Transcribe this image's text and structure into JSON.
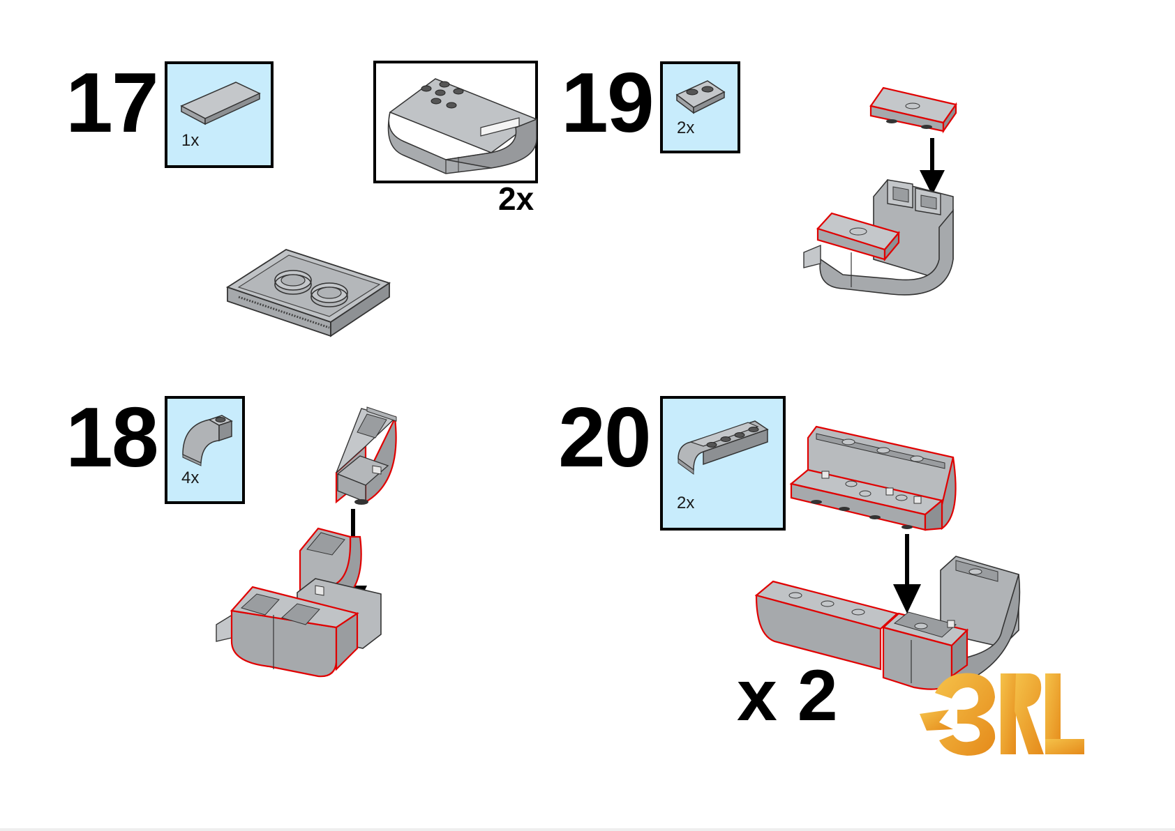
{
  "steps": [
    {
      "number": "17",
      "parts": [
        {
          "qty": "1x",
          "icon": "flat-tile-2x3"
        }
      ]
    },
    {
      "number": "18",
      "parts": [
        {
          "qty": "4x",
          "icon": "curved-slope-1x1"
        }
      ]
    },
    {
      "number": "19",
      "parts": [
        {
          "qty": "2x",
          "icon": "plate-1x2"
        }
      ]
    },
    {
      "number": "20",
      "parts": [
        {
          "qty": "2x",
          "icon": "curved-slope-1x4"
        }
      ]
    }
  ],
  "subassembly": {
    "multiplier": "2x"
  },
  "final_multiplier": "x 2",
  "logo": {
    "text": "RL",
    "colors": [
      "#f0b03c",
      "#e88a1c"
    ]
  },
  "colors": {
    "parts_box_bg": "#c8ecfc",
    "brick_gray": "#a8abae",
    "brick_top": "#c4c7ca",
    "highlight_outline": "#e00000",
    "arrow": "#000000"
  }
}
